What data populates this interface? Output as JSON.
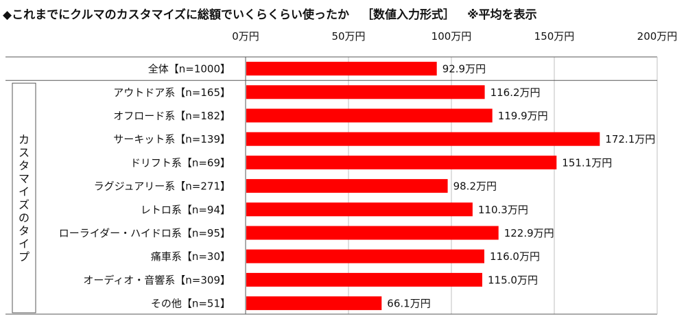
{
  "title": {
    "main": "◆これまでにクルマのカスタマイズに総額でいくらくらい使ったか",
    "sub": "［数値入力形式］",
    "note": "※平均を表示"
  },
  "group_label": "カスタマイズのタイプ",
  "chart_data": {
    "type": "bar",
    "orientation": "horizontal",
    "xlim": [
      0,
      200
    ],
    "ticks": [
      0,
      50,
      100,
      150,
      200
    ],
    "tick_labels": [
      "0万円",
      "50万円",
      "100万円",
      "150万円",
      "200万円"
    ],
    "grid": true,
    "bar_color": "#ff0000",
    "categories": [
      "全体【n=1000】",
      "アウトドア系【n=165】",
      "オフロード系【n=182】",
      "サーキット系【n=139】",
      "ドリフト系【n=69】",
      "ラグジュアリー系【n=271】",
      "レトロ系【n=94】",
      "ローライダー・ハイドロ系【n=95】",
      "痛車系【n=30】",
      "オーディオ・音響系【n=309】",
      "その他【n=51】"
    ],
    "values": [
      92.9,
      116.2,
      119.9,
      172.1,
      151.1,
      98.2,
      110.3,
      122.9,
      116.0,
      115.0,
      66.1
    ],
    "value_labels": [
      "92.9万円",
      "116.2万円",
      "119.9万円",
      "172.1万円",
      "151.1万円",
      "98.2万円",
      "110.3万円",
      "122.9万円",
      "116.0万円",
      "115.0万円",
      "66.1万円"
    ]
  }
}
